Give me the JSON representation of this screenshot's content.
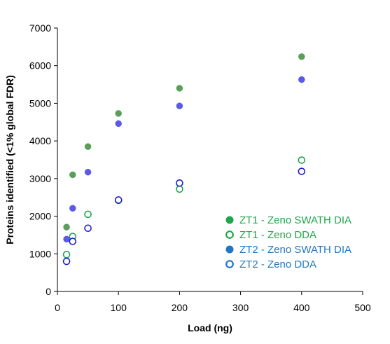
{
  "chart_data": {
    "type": "scatter",
    "xlabel": "Load (ng)",
    "ylabel": "Proteins identified (<1% global FDR)",
    "xlim": [
      0,
      500
    ],
    "ylim": [
      0,
      7000
    ],
    "x_ticks": [
      "0",
      "100",
      "200",
      "300",
      "400",
      "500"
    ],
    "y_ticks": [
      "0",
      "1000",
      "2000",
      "3000",
      "4000",
      "5000",
      "6000",
      "7000"
    ],
    "x_tick_values": [
      0,
      100,
      200,
      300,
      400,
      500
    ],
    "y_tick_values": [
      0,
      1000,
      2000,
      3000,
      4000,
      5000,
      6000,
      7000
    ],
    "grid": false,
    "legend_position": "bottom-right",
    "series": [
      {
        "name": "ZT1 - Zeno SWATH DIA",
        "color": "#5a9e5a",
        "legend_color": "#1fa64a",
        "filled": true,
        "points": [
          [
            15,
            1710
          ],
          [
            25,
            3100
          ],
          [
            50,
            3850
          ],
          [
            100,
            4730
          ],
          [
            200,
            5400
          ],
          [
            400,
            6240
          ]
        ]
      },
      {
        "name": "ZT1 - Zeno DDA",
        "color": "#1fa64a",
        "legend_color": "#1fa64a",
        "filled": false,
        "points": [
          [
            15,
            980
          ],
          [
            25,
            1460
          ],
          [
            50,
            2050
          ],
          [
            100,
            2420
          ],
          [
            200,
            2720
          ],
          [
            400,
            3490
          ]
        ]
      },
      {
        "name": "ZT2 - Zeno SWATH DIA",
        "color": "#5a5ae6",
        "legend_color": "#1f77c4",
        "filled": true,
        "points": [
          [
            15,
            1390
          ],
          [
            25,
            2210
          ],
          [
            50,
            3170
          ],
          [
            100,
            4460
          ],
          [
            200,
            4930
          ],
          [
            400,
            5630
          ]
        ]
      },
      {
        "name": "ZT2 - Zeno DDA",
        "color": "#2020c8",
        "legend_color": "#1f77c4",
        "filled": false,
        "points": [
          [
            15,
            800
          ],
          [
            25,
            1330
          ],
          [
            50,
            1680
          ],
          [
            100,
            2430
          ],
          [
            200,
            2880
          ],
          [
            400,
            3190
          ]
        ]
      }
    ]
  }
}
